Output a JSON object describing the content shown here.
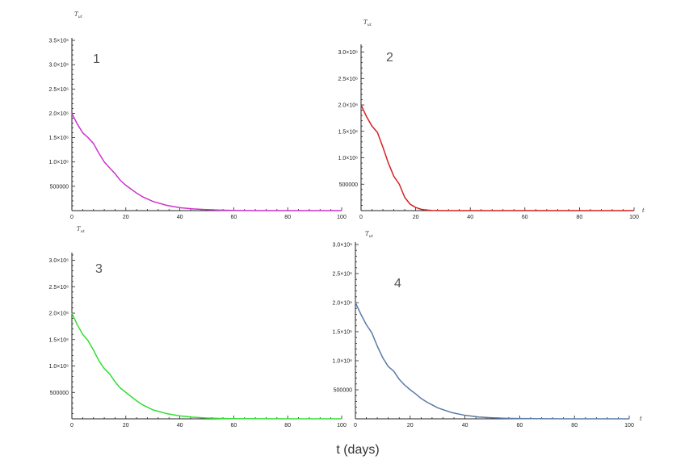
{
  "figure": {
    "global_xlabel": "t (days)"
  },
  "chart_data": [
    {
      "type": "line",
      "panel_label": "1",
      "ylabel": "T_ut",
      "xlabel": "",
      "color": "#cc33cc",
      "xlim": [
        0,
        100
      ],
      "ylim": [
        0,
        3500000
      ],
      "xticks": [
        0,
        20,
        40,
        60,
        80,
        100
      ],
      "yticks": [
        500000,
        1000000,
        1500000,
        2000000,
        2500000,
        3000000,
        3500000
      ],
      "ytick_labels": [
        "500000",
        "1.0×10⁶",
        "1.5×10⁶",
        "2.0×10⁶",
        "2.5×10⁶",
        "3.0×10⁶",
        "3.5×10⁶"
      ],
      "x": [
        0,
        2,
        4,
        6,
        8,
        10,
        12,
        14,
        16,
        18,
        20,
        22,
        24,
        26,
        28,
        30,
        35,
        40,
        45,
        50,
        55,
        60,
        70,
        80,
        90,
        100
      ],
      "values": [
        2000000,
        1780000,
        1600000,
        1500000,
        1380000,
        1180000,
        1000000,
        880000,
        760000,
        620000,
        520000,
        440000,
        360000,
        290000,
        240000,
        190000,
        110000,
        60000,
        35000,
        20000,
        10000,
        5000,
        1000,
        0,
        0,
        0
      ]
    },
    {
      "type": "line",
      "panel_label": "2",
      "ylabel": "T_ut",
      "xlabel": "t",
      "color": "#d42020",
      "xlim": [
        0,
        100
      ],
      "ylim": [
        0,
        3100000
      ],
      "xticks": [
        0,
        20,
        40,
        60,
        80,
        100
      ],
      "yticks": [
        500000,
        1000000,
        1500000,
        2000000,
        2500000,
        3000000
      ],
      "ytick_labels": [
        "500000",
        "1.0×10⁶",
        "1.5×10⁶",
        "2.0×10⁶",
        "2.5×10⁶",
        "3.0×10⁶"
      ],
      "x": [
        0,
        2,
        4,
        6,
        8,
        10,
        12,
        14,
        16,
        18,
        20,
        22,
        24,
        26,
        30,
        40,
        60,
        80,
        100
      ],
      "values": [
        2000000,
        1780000,
        1600000,
        1480000,
        1200000,
        900000,
        650000,
        500000,
        250000,
        120000,
        60000,
        25000,
        10000,
        3000,
        0,
        0,
        0,
        0,
        0
      ]
    },
    {
      "type": "line",
      "panel_label": "3",
      "ylabel": "T_ut",
      "xlabel": "",
      "color": "#33dd33",
      "xlim": [
        0,
        100
      ],
      "ylim": [
        0,
        3100000
      ],
      "xticks": [
        0,
        20,
        40,
        60,
        80,
        100
      ],
      "yticks": [
        500000,
        1000000,
        1500000,
        2000000,
        2500000,
        3000000
      ],
      "ytick_labels": [
        "500000",
        "1.0×10⁶",
        "1.5×10⁶",
        "2.0×10⁶",
        "2.5×10⁶",
        "3.0×10⁶"
      ],
      "x": [
        0,
        2,
        4,
        6,
        8,
        10,
        12,
        14,
        16,
        18,
        20,
        22,
        24,
        26,
        28,
        30,
        35,
        40,
        45,
        50,
        55,
        60,
        70,
        80,
        90,
        100
      ],
      "values": [
        2000000,
        1780000,
        1600000,
        1480000,
        1300000,
        1100000,
        950000,
        850000,
        700000,
        580000,
        500000,
        420000,
        340000,
        270000,
        220000,
        170000,
        100000,
        55000,
        30000,
        15000,
        8000,
        4000,
        1000,
        0,
        0,
        0
      ]
    },
    {
      "type": "line",
      "panel_label": "4",
      "ylabel": "T_ut",
      "xlabel": "t",
      "color": "#5a7aa8",
      "xlim": [
        0,
        100
      ],
      "ylim": [
        0,
        3000000
      ],
      "xticks": [
        0,
        20,
        40,
        60,
        80,
        100
      ],
      "yticks": [
        500000,
        1000000,
        1500000,
        2000000,
        2500000,
        3000000
      ],
      "ytick_labels": [
        "500000",
        "1.0×10⁶",
        "1.5×10⁶",
        "2.0×10⁶",
        "2.5×10⁶",
        "3.0×10⁶"
      ],
      "x": [
        0,
        2,
        4,
        6,
        8,
        10,
        12,
        14,
        16,
        18,
        20,
        22,
        24,
        26,
        28,
        30,
        35,
        40,
        45,
        50,
        55,
        60,
        70,
        80,
        90,
        100
      ],
      "values": [
        2000000,
        1800000,
        1620000,
        1480000,
        1250000,
        1050000,
        900000,
        820000,
        680000,
        580000,
        500000,
        430000,
        350000,
        290000,
        240000,
        190000,
        110000,
        60000,
        32000,
        18000,
        9000,
        4500,
        1000,
        0,
        0,
        0
      ]
    }
  ]
}
